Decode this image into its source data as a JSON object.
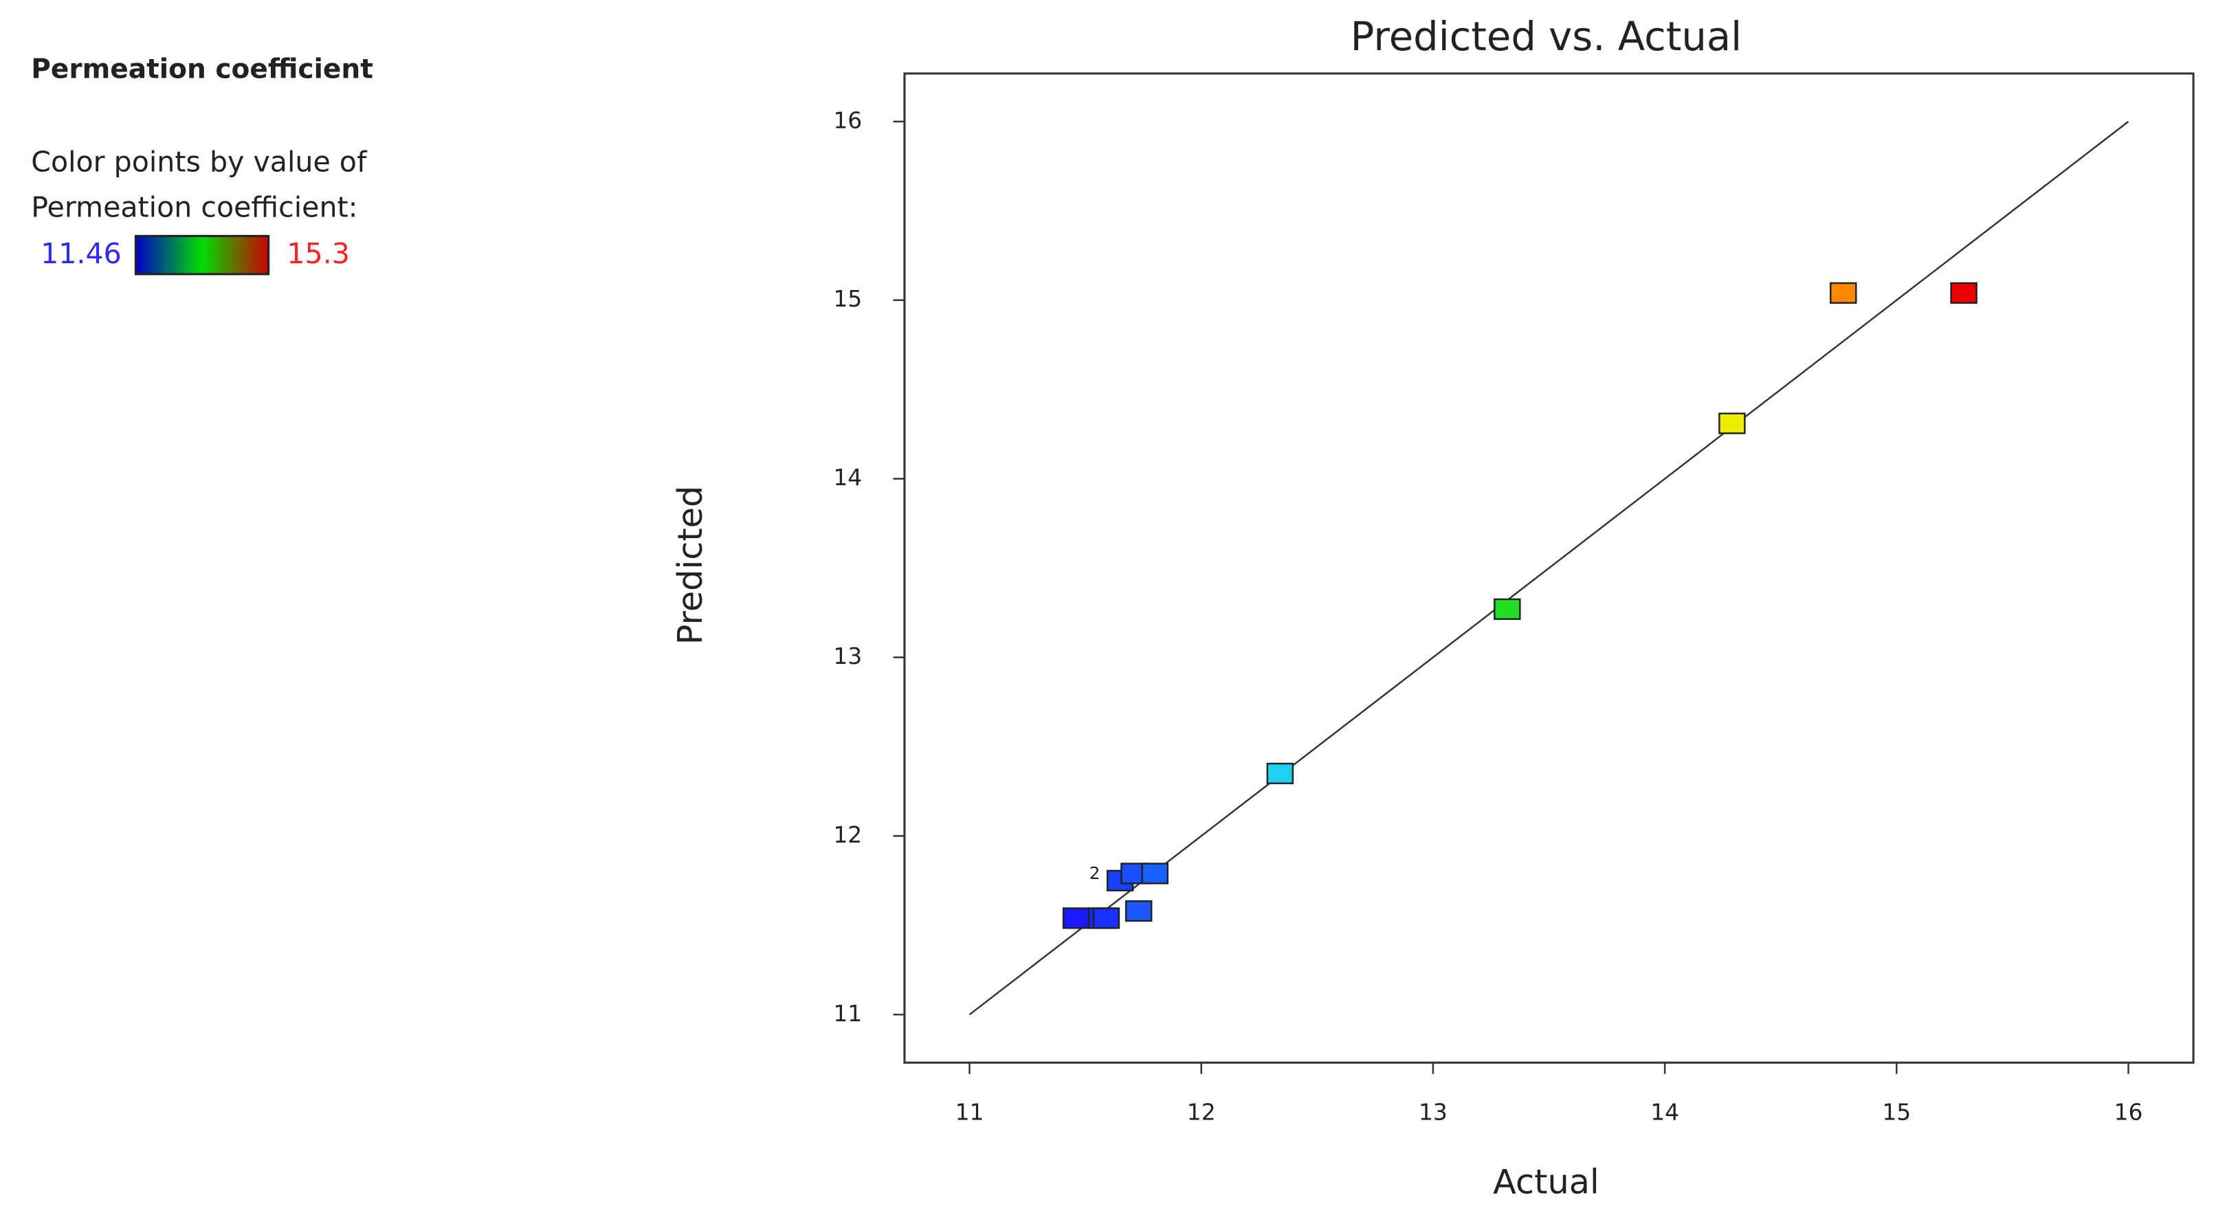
{
  "chart_data": {
    "type": "scatter",
    "title": "Predicted vs. Actual",
    "x_label": "Actual",
    "y_label": "Predicted",
    "legend_title": "Permeation coefficient",
    "colorbar": {
      "caption": [
        "Color points by value of",
        "Permeation coefficient:"
      ],
      "min": 11.46,
      "max": 15.3,
      "min_color": "#2b2bff",
      "max_color": "#ff2020",
      "colors": [
        "#0000cc",
        "#00dd00",
        "#cc0000"
      ]
    },
    "x": [
      11.46,
      11.57,
      11.59,
      11.65,
      11.71,
      11.8,
      11.73,
      12.34,
      13.32,
      14.29,
      14.77,
      15.29
    ],
    "values": [
      11.54,
      11.54,
      11.54,
      11.75,
      11.79,
      11.79,
      11.58,
      12.35,
      13.27,
      14.31,
      15.04,
      15.04
    ],
    "colors": [
      "#1a1aff",
      "#1a2cff",
      "#1a30ff",
      "#1a40ff",
      "#1a50ff",
      "#1a60ff",
      "#1a55ff",
      "#20d0f0",
      "#22dd22",
      "#eeee00",
      "#ff8800",
      "#ee0000"
    ],
    "annotations": [
      {
        "text": "2",
        "x": 11.6,
        "y": 11.77
      }
    ],
    "xlim": [
      11,
      16
    ],
    "ylim": [
      11,
      16
    ],
    "xticks": [
      11,
      12,
      13,
      14,
      15,
      16
    ],
    "yticks": [
      11,
      12,
      13,
      14,
      15,
      16
    ]
  }
}
